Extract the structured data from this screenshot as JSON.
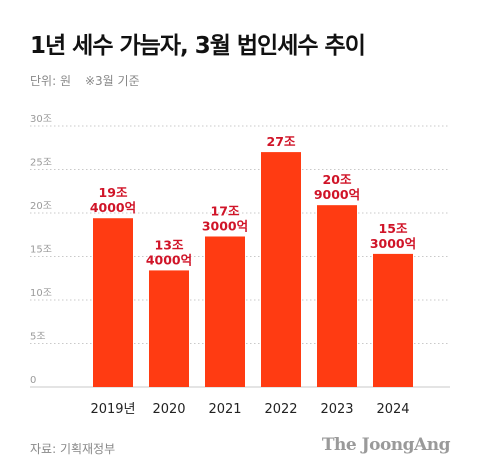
{
  "header": {
    "title": "1년 세수 가늠자, 3월 법인세수 추이",
    "unit": "단위: 원",
    "note": "※3월 기준"
  },
  "footer": {
    "source": "자료: 기획재정부",
    "brand": "The JoongAng"
  },
  "colors": {
    "bar": "#ff3b12",
    "label": "#d01428",
    "grid": "#c9c9c9",
    "tick": "#9a9a9a"
  },
  "chart_data": {
    "type": "bar",
    "title": "1년 세수 가늠자, 3월 법인세수 추이",
    "categories": [
      "2019년",
      "2020",
      "2021",
      "2022",
      "2023",
      "2024"
    ],
    "values": [
      19.4,
      13.4,
      17.3,
      27.0,
      20.9,
      15.3
    ],
    "data_labels": [
      [
        "19조",
        "4000억"
      ],
      [
        "13조",
        "4000억"
      ],
      [
        "17조",
        "3000억"
      ],
      [
        "27조",
        ""
      ],
      [
        "20조",
        "9000억"
      ],
      [
        "15조",
        "3000억"
      ]
    ],
    "yticks": [
      0,
      5,
      10,
      15,
      20,
      25,
      30
    ],
    "ytick_labels": [
      "0",
      "5조",
      "10조",
      "15조",
      "20조",
      "25조",
      "30조"
    ],
    "ylim": [
      0,
      30
    ],
    "grid": true,
    "legend": "none"
  }
}
